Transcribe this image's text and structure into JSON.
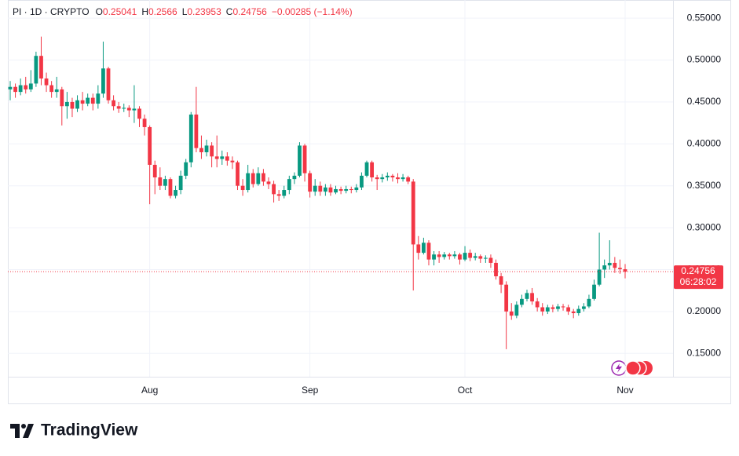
{
  "chart_data": {
    "type": "candlestick",
    "symbol": "PI · 1D · CRYPTO",
    "ohlc_labels": [
      "O",
      "H",
      "L",
      "C"
    ],
    "change": "−0.00285 (−1.14%)",
    "countdown": "06:28:02",
    "brand": "TradingView",
    "up_color": "#089981",
    "down_color": "#f23645",
    "grid": true,
    "categories": [
      null,
      null,
      null,
      null,
      null,
      null,
      null,
      null,
      null,
      null,
      null,
      null,
      null,
      null,
      null,
      null,
      null,
      null,
      null,
      null,
      null,
      null,
      null,
      null,
      null,
      null,
      null,
      "Aug",
      null,
      null,
      null,
      null,
      null,
      null,
      null,
      null,
      null,
      null,
      null,
      null,
      null,
      null,
      null,
      null,
      null,
      null,
      null,
      null,
      null,
      null,
      null,
      null,
      null,
      null,
      null,
      null,
      null,
      null,
      "Sep",
      null,
      null,
      null,
      null,
      null,
      null,
      null,
      null,
      null,
      null,
      null,
      null,
      null,
      null,
      null,
      null,
      null,
      null,
      null,
      null,
      null,
      null,
      null,
      null,
      null,
      null,
      null,
      null,
      null,
      "Oct",
      null,
      null,
      null,
      null,
      null,
      null,
      null,
      null,
      null,
      null,
      null,
      null,
      null,
      null,
      null,
      null,
      null,
      null,
      null,
      null,
      null,
      null,
      null,
      null,
      null,
      null,
      null,
      null,
      null,
      null,
      "Nov"
    ],
    "open": [
      0.465,
      0.468,
      0.462,
      0.47,
      0.465,
      0.472,
      0.505,
      0.478,
      0.47,
      0.462,
      0.465,
      0.445,
      0.45,
      0.442,
      0.452,
      0.448,
      0.455,
      0.448,
      0.46,
      0.49,
      0.452,
      0.445,
      0.442,
      0.443,
      0.44,
      0.442,
      0.43,
      0.42,
      0.375,
      0.36,
      0.35,
      0.358,
      0.338,
      0.345,
      0.362,
      0.378,
      0.435,
      0.395,
      0.39,
      0.398,
      0.385,
      0.382,
      0.385,
      0.38,
      0.378,
      0.35,
      0.345,
      0.365,
      0.352,
      0.365,
      0.355,
      0.352,
      0.34,
      0.338,
      0.345,
      0.358,
      0.362,
      0.398,
      0.365,
      0.343,
      0.35,
      0.343,
      0.348,
      0.342,
      0.346,
      0.344,
      0.346,
      0.345,
      0.348,
      0.362,
      0.378,
      0.36,
      0.358,
      0.36,
      0.362,
      0.36,
      0.358,
      0.36,
      0.355,
      0.28,
      0.27,
      0.282,
      0.262,
      0.268,
      0.265,
      0.268,
      0.266,
      0.268,
      0.262,
      0.27,
      0.264,
      0.266,
      0.263,
      0.264,
      0.258,
      0.242,
      0.232,
      0.2,
      0.195,
      0.208,
      0.215,
      0.222,
      0.212,
      0.205,
      0.2,
      0.205,
      0.203,
      0.206,
      0.205,
      0.2,
      0.198,
      0.203,
      0.206,
      0.215,
      0.232,
      0.25,
      0.255,
      0.258,
      0.252,
      0.25041
    ],
    "high": [
      0.475,
      0.472,
      0.478,
      0.48,
      0.488,
      0.51,
      0.528,
      0.485,
      0.475,
      0.48,
      0.468,
      0.462,
      0.455,
      0.458,
      0.462,
      0.46,
      0.46,
      0.47,
      0.522,
      0.492,
      0.458,
      0.45,
      0.448,
      0.446,
      0.47,
      0.445,
      0.435,
      0.422,
      0.38,
      0.372,
      0.362,
      0.36,
      0.35,
      0.368,
      0.382,
      0.438,
      0.468,
      0.41,
      0.405,
      0.402,
      0.41,
      0.392,
      0.39,
      0.385,
      0.38,
      0.358,
      0.375,
      0.37,
      0.372,
      0.37,
      0.36,
      0.356,
      0.345,
      0.35,
      0.362,
      0.366,
      0.402,
      0.4,
      0.368,
      0.358,
      0.355,
      0.352,
      0.352,
      0.35,
      0.349,
      0.35,
      0.349,
      0.352,
      0.366,
      0.38,
      0.38,
      0.363,
      0.364,
      0.366,
      0.364,
      0.365,
      0.364,
      0.362,
      0.358,
      0.29,
      0.288,
      0.285,
      0.272,
      0.272,
      0.271,
      0.27,
      0.272,
      0.27,
      0.278,
      0.274,
      0.27,
      0.268,
      0.267,
      0.268,
      0.262,
      0.246,
      0.236,
      0.21,
      0.212,
      0.22,
      0.226,
      0.228,
      0.216,
      0.21,
      0.208,
      0.208,
      0.209,
      0.209,
      0.208,
      0.203,
      0.207,
      0.21,
      0.22,
      0.238,
      0.294,
      0.262,
      0.285,
      0.265,
      0.262,
      0.2566
    ],
    "low": [
      0.452,
      0.455,
      0.458,
      0.46,
      0.462,
      0.468,
      0.47,
      0.462,
      0.455,
      0.455,
      0.422,
      0.43,
      0.432,
      0.438,
      0.44,
      0.445,
      0.44,
      0.442,
      0.455,
      0.448,
      0.44,
      0.437,
      0.438,
      0.432,
      0.425,
      0.42,
      0.41,
      0.328,
      0.34,
      0.345,
      0.345,
      0.335,
      0.335,
      0.34,
      0.358,
      0.372,
      0.39,
      0.382,
      0.385,
      0.372,
      0.372,
      0.375,
      0.374,
      0.37,
      0.345,
      0.338,
      0.342,
      0.348,
      0.35,
      0.35,
      0.346,
      0.33,
      0.332,
      0.335,
      0.34,
      0.352,
      0.36,
      0.355,
      0.336,
      0.338,
      0.338,
      0.338,
      0.338,
      0.34,
      0.34,
      0.341,
      0.341,
      0.342,
      0.345,
      0.36,
      0.355,
      0.345,
      0.354,
      0.356,
      0.355,
      0.353,
      0.355,
      0.352,
      0.225,
      0.262,
      0.268,
      0.255,
      0.255,
      0.258,
      0.262,
      0.262,
      0.263,
      0.256,
      0.26,
      0.26,
      0.261,
      0.258,
      0.258,
      0.252,
      0.238,
      0.222,
      0.155,
      0.19,
      0.192,
      0.205,
      0.212,
      0.208,
      0.2,
      0.195,
      0.197,
      0.199,
      0.2,
      0.201,
      0.196,
      0.192,
      0.195,
      0.2,
      0.204,
      0.213,
      0.23,
      0.24,
      0.25,
      0.246,
      0.245,
      0.23953
    ],
    "close": [
      0.468,
      0.462,
      0.47,
      0.465,
      0.472,
      0.505,
      0.478,
      0.47,
      0.462,
      0.465,
      0.445,
      0.45,
      0.442,
      0.452,
      0.448,
      0.455,
      0.448,
      0.46,
      0.49,
      0.452,
      0.445,
      0.442,
      0.443,
      0.44,
      0.442,
      0.43,
      0.42,
      0.375,
      0.36,
      0.35,
      0.358,
      0.338,
      0.345,
      0.362,
      0.378,
      0.435,
      0.395,
      0.39,
      0.398,
      0.385,
      0.382,
      0.385,
      0.38,
      0.378,
      0.35,
      0.345,
      0.365,
      0.352,
      0.365,
      0.355,
      0.352,
      0.34,
      0.338,
      0.345,
      0.358,
      0.362,
      0.398,
      0.365,
      0.343,
      0.35,
      0.343,
      0.348,
      0.342,
      0.346,
      0.344,
      0.346,
      0.345,
      0.348,
      0.362,
      0.378,
      0.36,
      0.358,
      0.36,
      0.362,
      0.36,
      0.358,
      0.36,
      0.355,
      0.28,
      0.27,
      0.282,
      0.262,
      0.268,
      0.265,
      0.268,
      0.266,
      0.268,
      0.262,
      0.27,
      0.264,
      0.266,
      0.263,
      0.264,
      0.258,
      0.242,
      0.232,
      0.2,
      0.195,
      0.208,
      0.215,
      0.222,
      0.212,
      0.205,
      0.2,
      0.205,
      0.203,
      0.206,
      0.205,
      0.2,
      0.198,
      0.203,
      0.206,
      0.215,
      0.232,
      0.25,
      0.255,
      0.258,
      0.252,
      0.25041,
      0.24756
    ],
    "ylim": [
      0.124,
      0.567
    ],
    "yticks": [
      {
        "value": 0.15,
        "label": "0.15000"
      },
      {
        "value": 0.2,
        "label": "0.20000"
      },
      {
        "value": 0.25,
        "label": "0.25000"
      },
      {
        "value": 0.3,
        "label": "0.30000"
      },
      {
        "value": 0.35,
        "label": "0.35000"
      },
      {
        "value": 0.4,
        "label": "0.40000"
      },
      {
        "value": 0.45,
        "label": "0.45000"
      },
      {
        "value": 0.5,
        "label": "0.50000"
      },
      {
        "value": 0.55,
        "label": "0.55000"
      }
    ]
  }
}
